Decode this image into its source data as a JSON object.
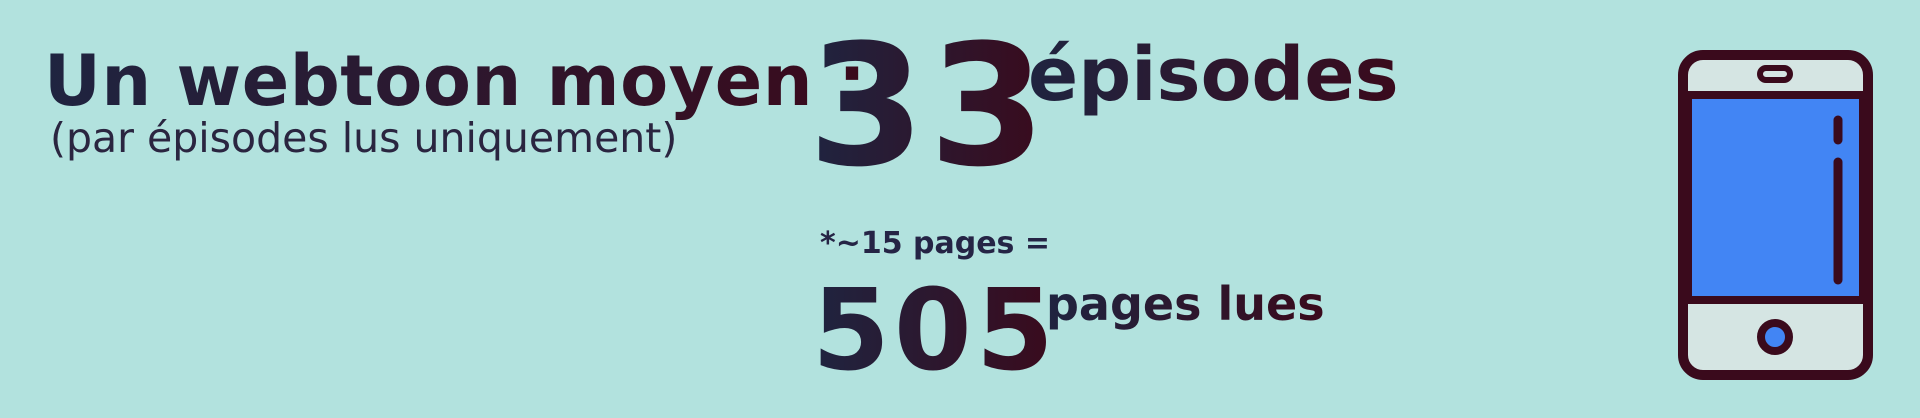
{
  "headline": "Un webtoon moyen :",
  "subline": "(par épisodes lus uniquement)",
  "episodes": {
    "value": "33",
    "label": "épisodes"
  },
  "note": "*~15 pages =",
  "pages": {
    "value": "505",
    "label": "pages lues"
  },
  "icon": "smartphone-icon",
  "colors": {
    "background": "#b2e2de",
    "text_dark_blue": "#1f2440",
    "text_dark_red": "#3a0a1c",
    "phone_outline": "#3a0a1c",
    "phone_screen": "#4285f4",
    "phone_body": "#d5e5e3"
  }
}
